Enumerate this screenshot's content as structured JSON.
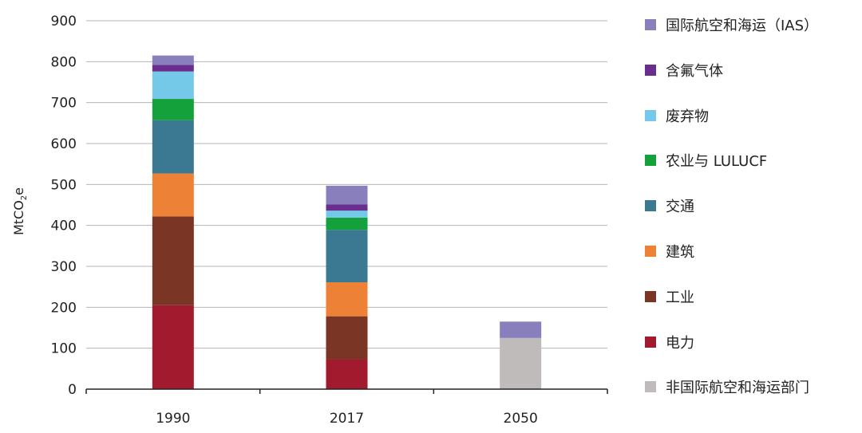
{
  "chart_data": {
    "type": "bar",
    "stacked": true,
    "ylabel_main": "MtCO",
    "ylabel_sub": "2",
    "ylabel_tail": "e",
    "ylim": [
      0,
      900
    ],
    "yticks": [
      0,
      100,
      200,
      300,
      400,
      500,
      600,
      700,
      800,
      900
    ],
    "grid": true,
    "legend_position": "right",
    "categories": [
      "1990",
      "2017",
      "2050"
    ],
    "series": [
      {
        "name": "非国际航空和海运部门",
        "color": "#bfbbbb",
        "values": [
          0,
          0,
          125
        ]
      },
      {
        "name": "电力",
        "color": "#a21a2e",
        "values": [
          205,
          73,
          0
        ]
      },
      {
        "name": "工业",
        "color": "#7a3524",
        "values": [
          217,
          105,
          0
        ]
      },
      {
        "name": "建筑",
        "color": "#ed8237",
        "values": [
          105,
          83,
          0
        ]
      },
      {
        "name": "交通",
        "color": "#3b7891",
        "values": [
          130,
          128,
          0
        ]
      },
      {
        "name": "农业与 LULUCF",
        "color": "#14a03a",
        "values": [
          52,
          30,
          0
        ]
      },
      {
        "name": "废弃物",
        "color": "#74c9e8",
        "values": [
          67,
          17,
          0
        ]
      },
      {
        "name": "含氟气体",
        "color": "#6a2e8f",
        "values": [
          16,
          15,
          0
        ]
      },
      {
        "name": "国际航空和海运（IAS）",
        "color": "#8a7fbd",
        "values": [
          23,
          46,
          40
        ]
      }
    ],
    "legend_order": [
      8,
      7,
      6,
      5,
      4,
      3,
      2,
      1,
      0
    ]
  }
}
